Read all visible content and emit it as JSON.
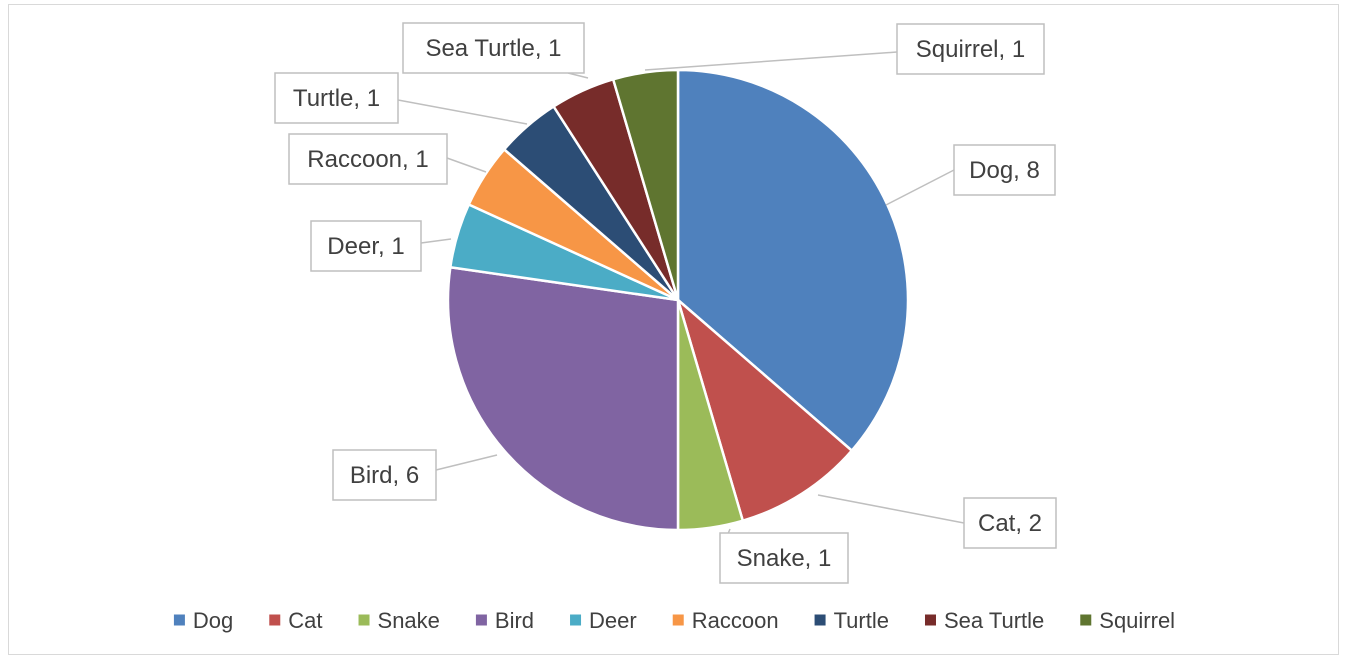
{
  "chart_data": {
    "type": "pie",
    "title": "",
    "categories": [
      "Dog",
      "Cat",
      "Snake",
      "Bird",
      "Deer",
      "Raccoon",
      "Turtle",
      "Sea Turtle",
      "Squirrel"
    ],
    "values": [
      8,
      2,
      1,
      6,
      1,
      1,
      1,
      1,
      1
    ],
    "colors": [
      "#4f81bd",
      "#c0504d",
      "#9bbb59",
      "#8064a2",
      "#4bacc6",
      "#f79646",
      "#2c4d75",
      "#772c2a",
      "#5f7530"
    ],
    "data_labels": [
      "Dog, 8",
      "Cat, 2",
      "Snake, 1",
      "Bird, 6",
      "Deer, 1",
      "Raccoon, 1",
      "Turtle, 1",
      "Sea Turtle, 1",
      "Squirrel, 1"
    ],
    "legend_position": "bottom",
    "start_angle": "12 o'clock",
    "direction": "clockwise"
  }
}
